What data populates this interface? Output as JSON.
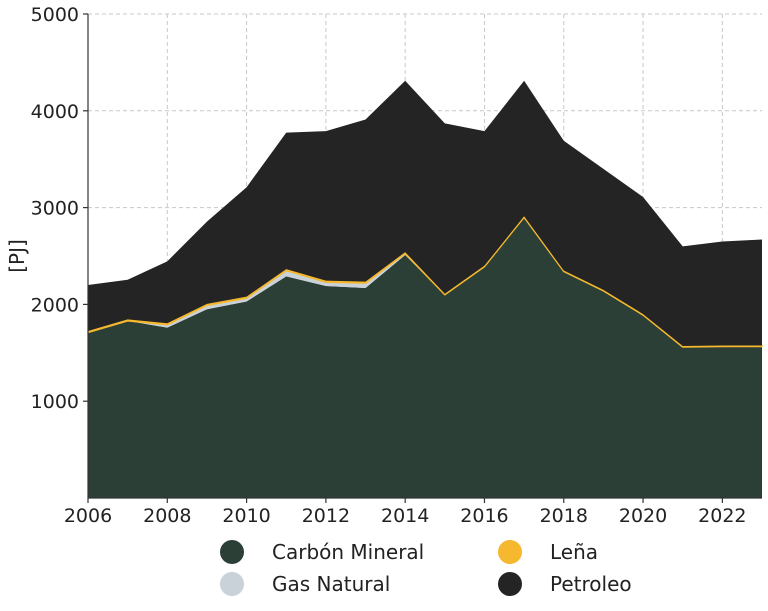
{
  "chart_data": {
    "type": "area",
    "stacked": true,
    "ylabel": "[PJ]",
    "xlabel": "",
    "title": "",
    "xlim": [
      2006,
      2023
    ],
    "ylim": [
      0,
      5000
    ],
    "xticks": [
      2006,
      2008,
      2010,
      2012,
      2014,
      2016,
      2018,
      2020,
      2022
    ],
    "yticks": [
      1000,
      2000,
      3000,
      4000,
      5000
    ],
    "grid": true,
    "legend_position": "bottom",
    "x": [
      2006,
      2007,
      2008,
      2009,
      2010,
      2011,
      2012,
      2013,
      2014,
      2015,
      2016,
      2017,
      2018,
      2019,
      2020,
      2021,
      2022,
      2023
    ],
    "series": [
      {
        "name": "Carbón Mineral",
        "color": "#2b3f36",
        "values": [
          1710,
          1830,
          1760,
          1950,
          2030,
          2290,
          2190,
          2170,
          2510,
          2100,
          2390,
          2900,
          2340,
          2140,
          1890,
          1560,
          1565,
          1565
        ]
      },
      {
        "name": "Gas Natural",
        "color": "#c9d1d9",
        "values": [
          0,
          0,
          30,
          40,
          35,
          60,
          40,
          50,
          15,
          0,
          0,
          0,
          0,
          0,
          0,
          0,
          0,
          0
        ]
      },
      {
        "name": "Leña",
        "color": "#f5b82e",
        "values": [
          15,
          15,
          15,
          15,
          15,
          15,
          15,
          15,
          15,
          10,
          10,
          10,
          10,
          10,
          10,
          10,
          10,
          10
        ]
      },
      {
        "name": "Petroleo",
        "color": "#242424",
        "values": [
          475,
          410,
          640,
          850,
          1130,
          1410,
          1545,
          1675,
          1770,
          1760,
          1390,
          1400,
          1340,
          1250,
          1210,
          1030,
          1075,
          1095
        ]
      }
    ]
  }
}
